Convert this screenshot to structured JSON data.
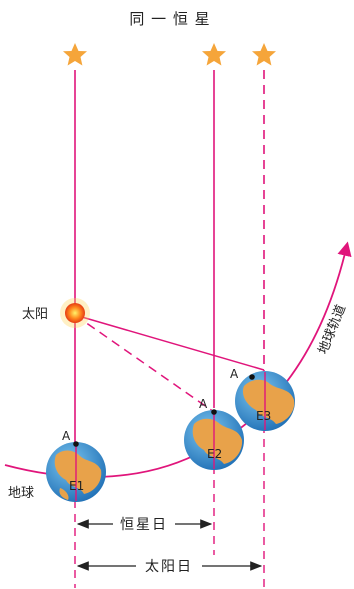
{
  "title": "同 一 恒 星",
  "labels": {
    "sun": "太阳",
    "earth": "地球",
    "orbit": "地球轨道",
    "point_a": "A",
    "e1": "E1",
    "e2": "E2",
    "e3": "E3",
    "sidereal_day": "恒星日",
    "solar_day": "太阳日"
  },
  "colors": {
    "magenta": "#e0157b",
    "star": "#f5a53a",
    "ocean": "#2f8fd0",
    "land": "#e8a24a",
    "sun": "#f15a22"
  }
}
